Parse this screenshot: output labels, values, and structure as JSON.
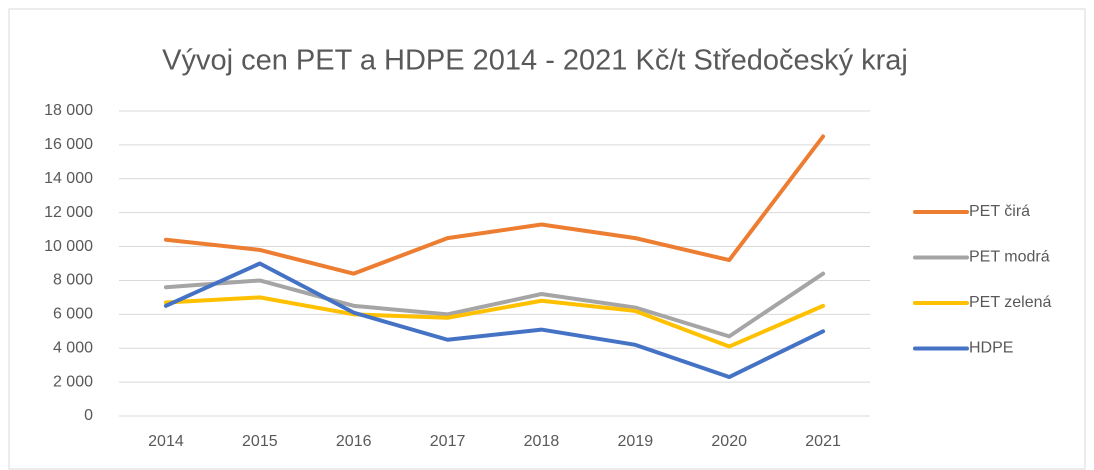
{
  "chart_data": {
    "type": "line",
    "title": "Vývoj cen PET a HDPE 2014 - 2021 Kč/t Středočeský kraj",
    "categories": [
      "2014",
      "2015",
      "2016",
      "2017",
      "2018",
      "2019",
      "2020",
      "2021"
    ],
    "series": [
      {
        "name": "PET čirá",
        "color": "#ed7d31",
        "values": [
          10400,
          9800,
          8400,
          10500,
          11300,
          10500,
          9200,
          16500
        ]
      },
      {
        "name": "PET modrá",
        "color": "#a5a5a5",
        "values": [
          7600,
          8000,
          6500,
          6000,
          7200,
          6400,
          4700,
          8400
        ]
      },
      {
        "name": "PET zelená",
        "color": "#ffc000",
        "values": [
          6700,
          7000,
          6000,
          5800,
          6800,
          6200,
          4100,
          6500
        ]
      },
      {
        "name": "HDPE",
        "color": "#4472c4",
        "values": [
          6500,
          9000,
          6100,
          4500,
          5100,
          4200,
          2300,
          5000
        ]
      }
    ],
    "ylim": [
      0,
      18000
    ],
    "yticks": [
      0,
      {
        "value": 2000,
        "label": "2 000"
      },
      {
        "value": 4000,
        "label": "4 000"
      },
      {
        "value": 6000,
        "label": "6 000"
      },
      {
        "value": 8000,
        "label": "8 000"
      },
      {
        "value": 10000,
        "label": "10 000"
      },
      {
        "value": 12000,
        "label": "12 000"
      },
      {
        "value": 14000,
        "label": "14 000"
      },
      {
        "value": 16000,
        "label": "16 000"
      },
      {
        "value": 18000,
        "label": "18 000"
      }
    ],
    "grid": true,
    "legend": "right"
  }
}
